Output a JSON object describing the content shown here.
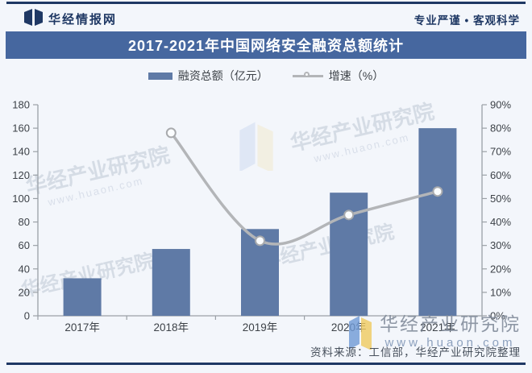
{
  "header": {
    "brand": "华经情报网",
    "slogan": "专业严谨 • 客观科学"
  },
  "title": "2017-2021年中国网络安全融资总额统计",
  "legend": {
    "bar_label": "融资总额（亿元）",
    "line_label": "增速（%）"
  },
  "source_note": "资料来源：工信部，华经产业研究院整理",
  "watermark": {
    "name": "华经产业研究院",
    "url": "www.huaon.com"
  },
  "colors": {
    "banner_blue": "#46679f",
    "navy": "#1f3864",
    "bar_blue": "#5f7aa6",
    "line_gray": "#b3b5b8",
    "marker_stroke": "#a8aaad",
    "axis_gray": "#9aa0a6",
    "tick_text": "#3d4248",
    "source_text": "#47505c",
    "page_bg": "#f3f6fb"
  },
  "chart_data": {
    "type": "bar",
    "subtype": "combo bar + line, dual y-axis",
    "title": "2017-2021年中国网络安全融资总额统计",
    "categories": [
      "2017年",
      "2018年",
      "2019年",
      "2020年",
      "2021年"
    ],
    "series": [
      {
        "name": "融资总额（亿元）",
        "type": "bar",
        "axis": "left",
        "values": [
          32,
          57,
          74,
          105,
          160
        ]
      },
      {
        "name": "增速（%）",
        "type": "line",
        "axis": "right",
        "values": [
          null,
          78,
          32,
          43,
          53
        ]
      }
    ],
    "left_axis": {
      "min": 0,
      "max": 180,
      "step": 20
    },
    "right_axis": {
      "min": 0,
      "max": 90,
      "step": 10,
      "suffix": "%"
    },
    "grid": false,
    "legend_position": "top"
  }
}
